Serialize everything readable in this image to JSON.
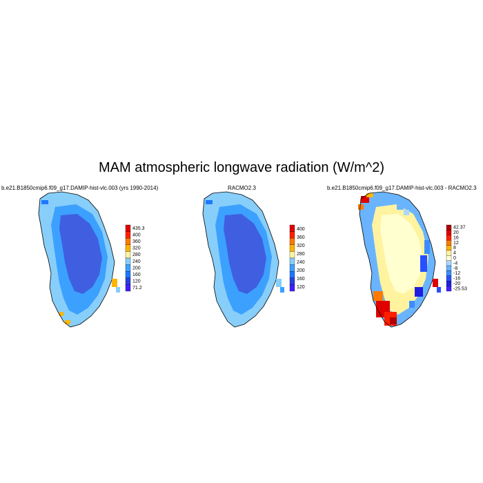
{
  "title": "MAM atmospheric longwave radiation (W/m^2)",
  "chart_data": [
    {
      "type": "heatmap",
      "title": "b.e21.B1850cmip6.f09_g17.DAMIP-hist-vlc.003 (yrs 1990-2014)",
      "colorbar_labels": [
        "435.3",
        "400",
        "360",
        "320",
        "280",
        "240",
        "200",
        "160",
        "120",
        "71.2"
      ],
      "colorbar_colors": [
        "#e00000",
        "#ff2000",
        "#ff7a00",
        "#ffb400",
        "#fff3a0",
        "#87cefa",
        "#3ca0ff",
        "#1e78ff",
        "#2840e0",
        "#4020ff"
      ],
      "range": [
        71.2,
        435.3
      ],
      "field": "ice-sheet interior ~160-200, margins ~200-280, warm southern tip and coastal spots ~320+"
    },
    {
      "type": "heatmap",
      "title": "RACMO2.3",
      "colorbar_labels": [
        "400",
        "360",
        "320",
        "280",
        "240",
        "200",
        "160",
        "120"
      ],
      "colorbar_colors": [
        "#e00000",
        "#ff2000",
        "#ff7a00",
        "#ffb400",
        "#fff3a0",
        "#87cefa",
        "#3ca0ff",
        "#1e78ff",
        "#2840e0",
        "#4020ff"
      ],
      "field": "ice-sheet interior ~160-200, margins ~200-280"
    },
    {
      "type": "heatmap",
      "title": "b.e21.B1850cmip6.f09_g17.DAMIP-hist-vlc.003 - RACMO2.3",
      "colorbar_labels": [
        "42.37",
        "20",
        "16",
        "12",
        "8",
        "4",
        "0",
        "-4",
        "-8",
        "-12",
        "-16",
        "-20",
        "-25.53"
      ],
      "colorbar_colors": [
        "#b00000",
        "#e00000",
        "#ff2000",
        "#ff7a00",
        "#ffb400",
        "#fff3a0",
        "#ffffd0",
        "#a8d8ff",
        "#6ab4ff",
        "#3c8cff",
        "#2850ff",
        "#1e1ee0",
        "#4020ff"
      ],
      "range": [
        -25.53,
        42.37
      ],
      "field": "interior near 0 to +8, southern tip +16 to +42, eastern margin -8 to -25"
    }
  ]
}
